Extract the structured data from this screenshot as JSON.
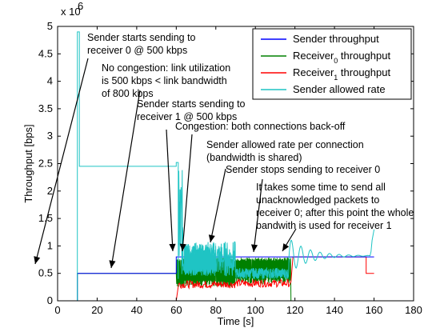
{
  "chart_data": {
    "type": "line",
    "xlabel": "Time [s]",
    "ylabel": "Throughput [bps]",
    "xlim": [
      0,
      180
    ],
    "ylim": [
      0,
      5000000
    ],
    "x_ticks": [
      "0",
      "20",
      "40",
      "60",
      "80",
      "100",
      "120",
      "140",
      "160",
      "180"
    ],
    "y_ticks": [
      "0",
      "0.5",
      "1",
      "1.5",
      "2",
      "2.5",
      "3",
      "3.5",
      "4",
      "4.5",
      "5"
    ],
    "y_multiplier": {
      "base": "x 10",
      "exponent": "6"
    },
    "legend_position": "top-right",
    "legend": [
      {
        "base": "Sender throughput",
        "sub": "",
        "rest": ""
      },
      {
        "base": "Receiver",
        "sub": "0",
        "rest": " throughput"
      },
      {
        "base": "Receiver",
        "sub": "1",
        "rest": " throughput"
      },
      {
        "base": "Sender allowed rate",
        "sub": "",
        "rest": ""
      }
    ],
    "colors": {
      "sender_throughput": "#0000ff",
      "receiver0": "#008000",
      "receiver1": "#ff0000",
      "allowed_rate": "#1fc4c4"
    },
    "series": [
      {
        "name": "Sender throughput",
        "x": [
          10,
          10,
          60,
          60,
          61,
          61,
          118,
          118,
          160
        ],
        "y": [
          0,
          500000,
          500000,
          800000,
          800000,
          800000,
          800000,
          800000,
          800000
        ]
      },
      {
        "name": "Receiver0 throughput",
        "x": [
          10,
          10,
          60,
          62,
          90,
          118,
          118
        ],
        "y": [
          0,
          500000,
          500000,
          650000,
          720000,
          720000,
          0
        ]
      },
      {
        "name": "Receiver1 throughput",
        "x": [
          60,
          62,
          90,
          118,
          120,
          156,
          156,
          160
        ],
        "y": [
          0,
          400000,
          250000,
          350000,
          800000,
          800000,
          500000,
          500000
        ]
      },
      {
        "name": "Sender allowed rate",
        "x": [
          10,
          10,
          11,
          11,
          60,
          60,
          61,
          62,
          64,
          90,
          118,
          125,
          130,
          140,
          150,
          158,
          160
        ],
        "y": [
          0,
          4900000,
          4900000,
          2450000,
          2450000,
          2500000,
          400000,
          700000,
          1000000,
          950000,
          700000,
          1000000,
          600000,
          900000,
          700000,
          850000,
          1300000
        ]
      }
    ],
    "annotations": [
      {
        "lines": [
          "Sender starts sending to",
          "receiver 0 @ 500 kbps"
        ]
      },
      {
        "lines": [
          "No congestion: link utilization",
          "is 500 kbps < link bandwidth",
          "of 800 kbps"
        ]
      },
      {
        "lines": [
          "Sender starts sending to",
          "receiver 1 @ 500 kbps"
        ]
      },
      {
        "lines": [
          "Congestion: both connections back-off"
        ]
      },
      {
        "lines": [
          "Sender allowed rate per connection",
          "(bandwidth is shared)"
        ]
      },
      {
        "lines": [
          "Sender stops sending to receiver 0"
        ]
      },
      {
        "lines": [
          "It takes some time to send all",
          "unacknowledged packets to",
          "receiver 0; after this point the whole",
          "bandwith is used for receiver 1"
        ]
      }
    ]
  }
}
